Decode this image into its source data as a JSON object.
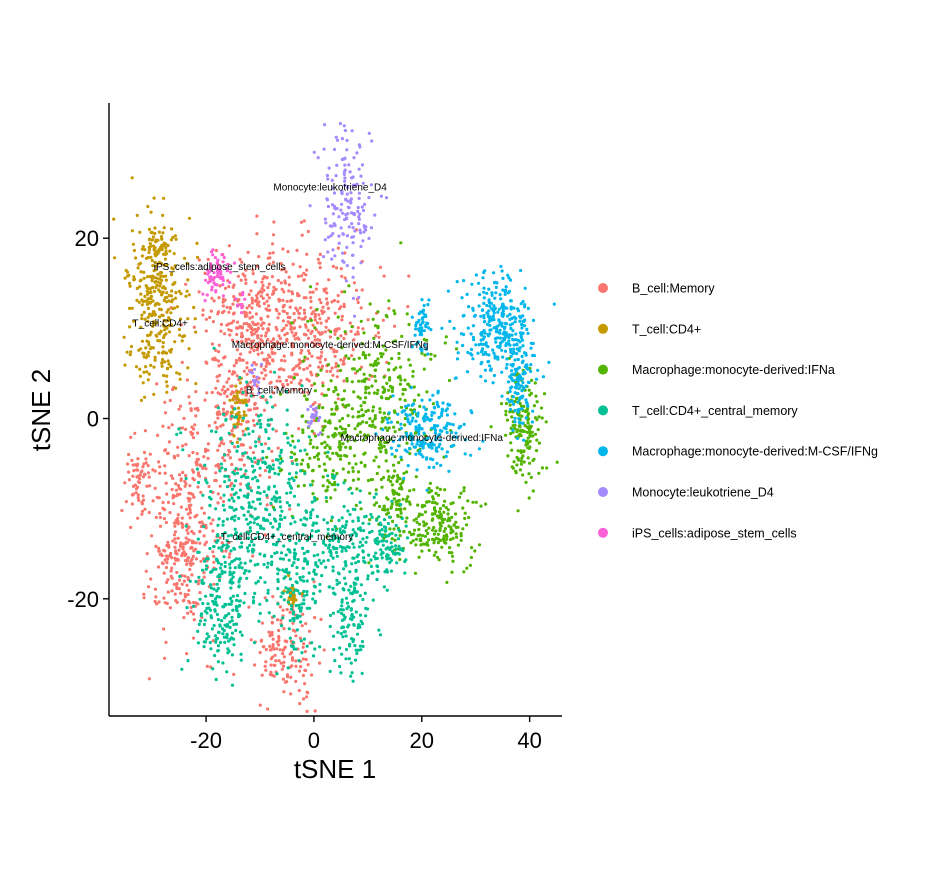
{
  "chart_data": {
    "type": "scatter",
    "title": "",
    "xlabel": "tSNE 1",
    "ylabel": "tSNE 2",
    "xlim": [
      -38,
      46
    ],
    "ylim": [
      -33,
      35
    ],
    "xticks": [
      -20,
      0,
      20,
      40
    ],
    "yticks": [
      -20,
      0,
      20
    ],
    "xtick_labels": [
      "-20",
      "0",
      "20",
      "40"
    ],
    "ytick_labels": [
      "-20",
      "0",
      "20"
    ],
    "grid": false,
    "legend_position": "right",
    "series": [
      {
        "name": "B_cell:Memory",
        "color": "#F8766D",
        "point_count": 1400,
        "blobs": [
          {
            "cx": -3,
            "cy": 10,
            "sx": 7,
            "sy": 4.5,
            "w": 0.32
          },
          {
            "cx": -14,
            "cy": 2,
            "sx": 4,
            "sy": 6,
            "w": 0.18
          },
          {
            "cx": -23,
            "cy": -10,
            "sx": 3.5,
            "sy": 8,
            "w": 0.2
          },
          {
            "cx": -32,
            "cy": -7,
            "sx": 1.5,
            "sy": 2,
            "w": 0.05
          },
          {
            "cx": -5,
            "cy": -26,
            "sx": 3,
            "sy": 3,
            "w": 0.1
          },
          {
            "cx": -12,
            "cy": 12,
            "sx": 3,
            "sy": 3,
            "w": 0.08
          },
          {
            "cx": -26,
            "cy": -16,
            "sx": 2,
            "sy": 3,
            "w": 0.07
          }
        ]
      },
      {
        "name": "T_cell:CD4+",
        "color": "#C49A00",
        "point_count": 430,
        "blobs": [
          {
            "cx": -29,
            "cy": 12,
            "sx": 3,
            "sy": 4.5,
            "w": 0.72
          },
          {
            "cx": -29,
            "cy": 19,
            "sx": 1.5,
            "sy": 1.2,
            "w": 0.12
          },
          {
            "cx": -14,
            "cy": 1,
            "sx": 0.8,
            "sy": 1.5,
            "w": 0.1
          },
          {
            "cx": -4,
            "cy": -19.5,
            "sx": 0.6,
            "sy": 0.6,
            "w": 0.06
          }
        ]
      },
      {
        "name": "Macrophage:monocyte-derived:IFNa",
        "color": "#53B400",
        "point_count": 900,
        "blobs": [
          {
            "cx": 12,
            "cy": 1,
            "sx": 6,
            "sy": 5.5,
            "w": 0.4
          },
          {
            "cx": 2,
            "cy": -4,
            "sx": 3.5,
            "sy": 3,
            "w": 0.14
          },
          {
            "cx": 23,
            "cy": -12,
            "sx": 3.2,
            "sy": 2.2,
            "w": 0.2
          },
          {
            "cx": 39,
            "cy": -1,
            "sx": 1.8,
            "sy": 3,
            "w": 0.18
          },
          {
            "cx": 15,
            "cy": -9,
            "sx": 1.5,
            "sy": 2,
            "w": 0.08
          }
        ]
      },
      {
        "name": "T_cell:CD4+_central_memory",
        "color": "#00C094",
        "point_count": 1100,
        "blobs": [
          {
            "cx": -10,
            "cy": -10,
            "sx": 5.5,
            "sy": 5.5,
            "w": 0.4
          },
          {
            "cx": -17,
            "cy": -21,
            "sx": 2.5,
            "sy": 4,
            "w": 0.18
          },
          {
            "cx": 5,
            "cy": -14,
            "sx": 4,
            "sy": 3,
            "w": 0.16
          },
          {
            "cx": 7,
            "cy": -22,
            "sx": 2,
            "sy": 3,
            "w": 0.1
          },
          {
            "cx": 14,
            "cy": -14,
            "sx": 2,
            "sy": 2,
            "w": 0.08
          },
          {
            "cx": -3,
            "cy": -20,
            "sx": 2,
            "sy": 3,
            "w": 0.08
          }
        ]
      },
      {
        "name": "Macrophage:monocyte-derived:M-CSF/IFNg",
        "color": "#00B6EB",
        "point_count": 650,
        "blobs": [
          {
            "cx": 34,
            "cy": 10,
            "sx": 3.5,
            "sy": 2.8,
            "w": 0.46
          },
          {
            "cx": 21,
            "cy": -1.5,
            "sx": 3.5,
            "sy": 2.2,
            "w": 0.3
          },
          {
            "cx": 20,
            "cy": 10,
            "sx": 0.8,
            "sy": 1.5,
            "w": 0.08
          },
          {
            "cx": 38,
            "cy": 4,
            "sx": 1.2,
            "sy": 2.5,
            "w": 0.16
          }
        ]
      },
      {
        "name": "Monocyte:leukotriene_D4",
        "color": "#A58AFF",
        "point_count": 190,
        "blobs": [
          {
            "cx": 6,
            "cy": 24,
            "sx": 2.2,
            "sy": 4,
            "w": 0.82
          },
          {
            "cx": 0,
            "cy": 0,
            "sx": 0.8,
            "sy": 0.8,
            "w": 0.1
          },
          {
            "cx": -11,
            "cy": 4.5,
            "sx": 0.6,
            "sy": 0.8,
            "w": 0.08
          }
        ]
      },
      {
        "name": "iPS_cells:adipose_stem_cells",
        "color": "#FB61D7",
        "point_count": 70,
        "blobs": [
          {
            "cx": -18,
            "cy": 16,
            "sx": 1.3,
            "sy": 1.4,
            "w": 0.85
          },
          {
            "cx": -13.5,
            "cy": 12.5,
            "sx": 0.5,
            "sy": 0.8,
            "w": 0.15
          }
        ]
      }
    ],
    "annotations": [
      {
        "text": "Monocyte:leukotriene_D4",
        "x": 3,
        "y": 25.3
      },
      {
        "text": "iPS_cells:adipose_stem_cells",
        "x": -17.5,
        "y": 16.5
      },
      {
        "text": "T_cell:CD4+",
        "x": -28.5,
        "y": 10.2
      },
      {
        "text": "Macrophage:monocyte-derived:M-CSF/IFNg",
        "x": 3,
        "y": 7.8
      },
      {
        "text": "B_cell:Memory",
        "x": -6.5,
        "y": 2.8
      },
      {
        "text": "Macrophage:monocyte-derived:IFNa",
        "x": 20,
        "y": -2.5
      },
      {
        "text": "T_cell:CD4+_central_memory",
        "x": -5,
        "y": -13.5
      }
    ]
  }
}
